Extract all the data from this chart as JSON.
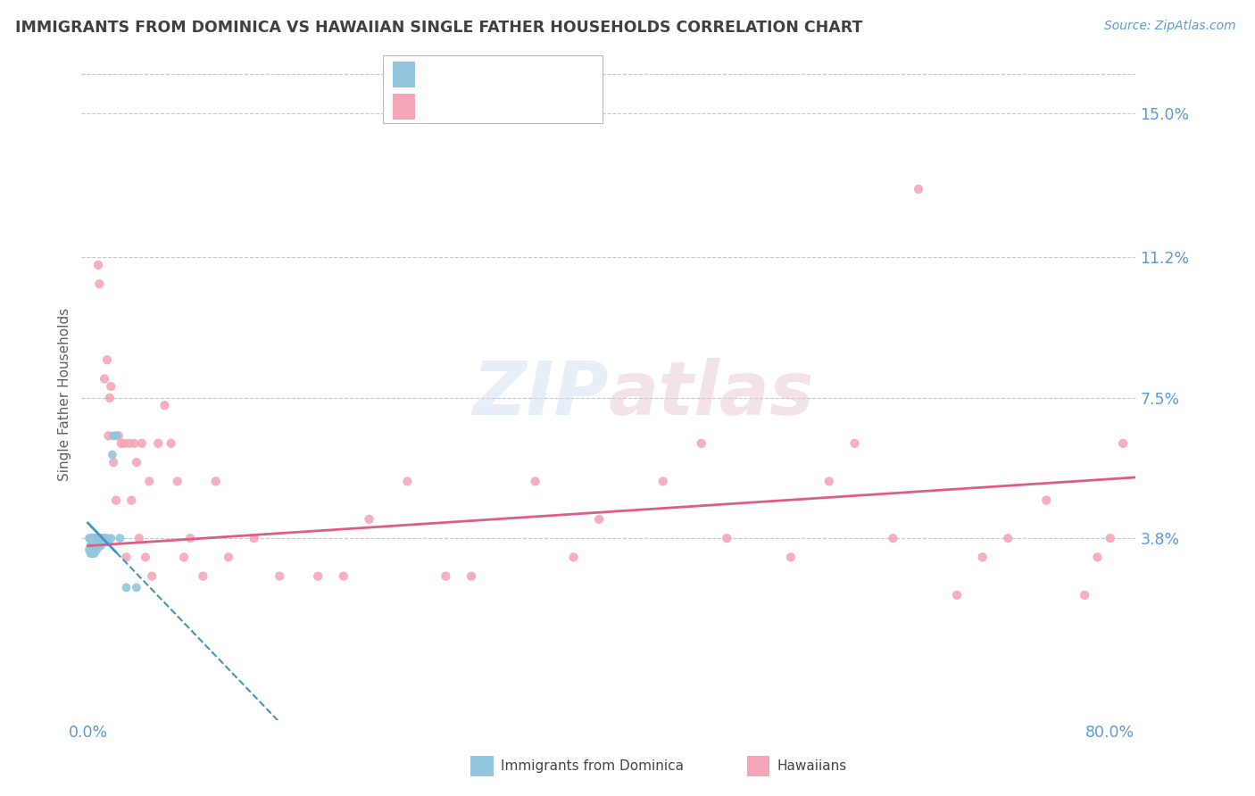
{
  "title": "IMMIGRANTS FROM DOMINICA VS HAWAIIAN SINGLE FATHER HOUSEHOLDS CORRELATION CHART",
  "source_text": "Source: ZipAtlas.com",
  "ylabel": "Single Father Households",
  "y_ticks": [
    0.0,
    0.038,
    0.075,
    0.112,
    0.15
  ],
  "y_tick_labels": [
    "",
    "3.8%",
    "7.5%",
    "11.2%",
    "15.0%"
  ],
  "xlim": [
    -0.005,
    0.82
  ],
  "ylim": [
    -0.01,
    0.162
  ],
  "color_blue": "#92c5de",
  "color_pink": "#f4a6b8",
  "color_blue_line": "#4393c3",
  "color_pink_line": "#e05c85",
  "color_axis_text": "#5b9bd5",
  "color_grid": "#c8c8c8",
  "color_title": "#404040",
  "background_color": "#ffffff",
  "watermark_text": "ZIPatlas",
  "blue_x": [
    0.001,
    0.001,
    0.002,
    0.002,
    0.002,
    0.003,
    0.003,
    0.003,
    0.003,
    0.004,
    0.004,
    0.004,
    0.005,
    0.005,
    0.005,
    0.005,
    0.006,
    0.006,
    0.006,
    0.007,
    0.007,
    0.007,
    0.008,
    0.008,
    0.009,
    0.009,
    0.01,
    0.01,
    0.011,
    0.012,
    0.013,
    0.014,
    0.015,
    0.016,
    0.018,
    0.019,
    0.02,
    0.022,
    0.025,
    0.03,
    0.038
  ],
  "blue_y": [
    0.038,
    0.035,
    0.038,
    0.036,
    0.034,
    0.038,
    0.037,
    0.036,
    0.034,
    0.038,
    0.037,
    0.036,
    0.038,
    0.037,
    0.036,
    0.034,
    0.038,
    0.037,
    0.036,
    0.038,
    0.037,
    0.035,
    0.038,
    0.036,
    0.038,
    0.036,
    0.038,
    0.036,
    0.038,
    0.037,
    0.038,
    0.037,
    0.038,
    0.037,
    0.038,
    0.06,
    0.065,
    0.065,
    0.038,
    0.025,
    0.025
  ],
  "pink_x": [
    0.003,
    0.004,
    0.005,
    0.006,
    0.007,
    0.008,
    0.009,
    0.01,
    0.011,
    0.013,
    0.015,
    0.016,
    0.017,
    0.018,
    0.02,
    0.022,
    0.024,
    0.026,
    0.028,
    0.03,
    0.032,
    0.034,
    0.036,
    0.038,
    0.04,
    0.042,
    0.045,
    0.048,
    0.05,
    0.055,
    0.06,
    0.065,
    0.07,
    0.075,
    0.08,
    0.09,
    0.1,
    0.11,
    0.13,
    0.15,
    0.18,
    0.22,
    0.25,
    0.3,
    0.35,
    0.4,
    0.45,
    0.5,
    0.55,
    0.6,
    0.63,
    0.65,
    0.68,
    0.7,
    0.72,
    0.75,
    0.78,
    0.79,
    0.8,
    0.81,
    0.58,
    0.48,
    0.38,
    0.28,
    0.2
  ],
  "pink_y": [
    0.038,
    0.038,
    0.038,
    0.038,
    0.038,
    0.11,
    0.105,
    0.038,
    0.038,
    0.08,
    0.085,
    0.065,
    0.075,
    0.078,
    0.058,
    0.048,
    0.065,
    0.063,
    0.063,
    0.033,
    0.063,
    0.048,
    0.063,
    0.058,
    0.038,
    0.063,
    0.033,
    0.053,
    0.028,
    0.063,
    0.073,
    0.063,
    0.053,
    0.033,
    0.038,
    0.028,
    0.053,
    0.033,
    0.038,
    0.028,
    0.028,
    0.043,
    0.053,
    0.028,
    0.053,
    0.043,
    0.053,
    0.038,
    0.033,
    0.063,
    0.038,
    0.13,
    0.023,
    0.033,
    0.038,
    0.048,
    0.023,
    0.033,
    0.038,
    0.063,
    0.053,
    0.063,
    0.033,
    0.028,
    0.028
  ],
  "blue_trend_x": [
    0.0,
    0.04
  ],
  "blue_trend_slope": -0.35,
  "blue_trend_intercept": 0.042,
  "pink_trend_x_start": 0.0,
  "pink_trend_x_end": 0.82,
  "pink_trend_slope": 0.022,
  "pink_trend_intercept": 0.036
}
